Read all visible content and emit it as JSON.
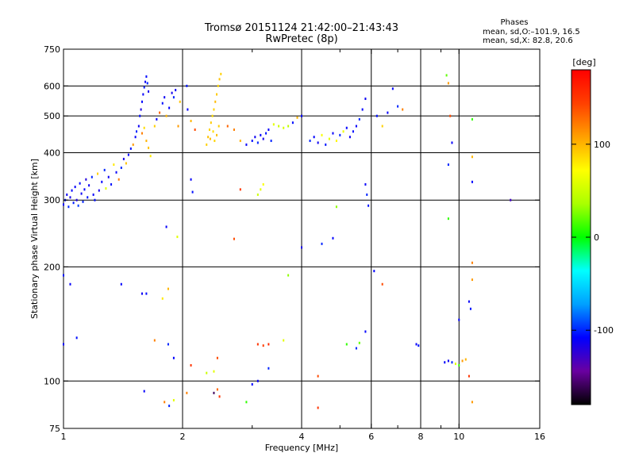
{
  "header": {
    "title_line1": "Tromsø 20151124 21:42:00–21:43:43",
    "title_line2": "RwPretec (8p)"
  },
  "stats_box": {
    "heading": "Phases",
    "line1": "mean, sd,O:–101.9, 16.5",
    "line2": "mean, sd,X:  82.8, 20.6"
  },
  "colorbar": {
    "unit_label": "[deg]",
    "ticks": [
      "100",
      "0",
      "-100"
    ],
    "tick_values": [
      100,
      0,
      -100
    ],
    "range": [
      -180,
      180
    ],
    "colors": [
      "#000000",
      "#6a00a0",
      "#0000ff",
      "#00a0ff",
      "#00ffff",
      "#00ff00",
      "#aaff00",
      "#ffff00",
      "#ffa000",
      "#ff4000",
      "#ff0000"
    ]
  },
  "chart_data": {
    "type": "scatter",
    "xlabel": "Frequency [MHz]",
    "ylabel": "Stationary phase Virtual Height [km]",
    "xscale": "log",
    "yscale": "log",
    "xlim": [
      1,
      16
    ],
    "ylim": [
      75,
      750
    ],
    "x_ticks": [
      1,
      2,
      4,
      6,
      8,
      10,
      16
    ],
    "x_tick_labels": [
      "1",
      "2",
      "4",
      "6",
      "8",
      "10",
      "16"
    ],
    "x_minor_ticks": [
      3,
      5,
      7,
      9
    ],
    "x_gridlines": [
      2,
      4,
      6,
      8,
      10
    ],
    "y_ticks": [
      75,
      100,
      200,
      300,
      400,
      500,
      600,
      750
    ],
    "y_tick_labels": [
      "75",
      "100",
      "200",
      "300",
      "400",
      "500",
      "600",
      "750"
    ],
    "y_gridlines": [
      100,
      200,
      300,
      400,
      500,
      600
    ],
    "grid": true,
    "color_variable": "phase [deg]",
    "points": [
      {
        "f": 1.0,
        "h": 292,
        "p": -110
      },
      {
        "f": 1.01,
        "h": 300,
        "p": -105
      },
      {
        "f": 1.02,
        "h": 310,
        "p": -112
      },
      {
        "f": 1.03,
        "h": 288,
        "p": -100
      },
      {
        "f": 1.04,
        "h": 305,
        "p": -115
      },
      {
        "f": 1.05,
        "h": 318,
        "p": -108
      },
      {
        "f": 1.06,
        "h": 295,
        "p": -102
      },
      {
        "f": 1.07,
        "h": 325,
        "p": -110
      },
      {
        "f": 1.08,
        "h": 300,
        "p": -118
      },
      {
        "f": 1.09,
        "h": 290,
        "p": -95
      },
      {
        "f": 1.1,
        "h": 332,
        "p": -105
      },
      {
        "f": 1.11,
        "h": 312,
        "p": -112
      },
      {
        "f": 1.12,
        "h": 297,
        "p": -100
      },
      {
        "f": 1.13,
        "h": 320,
        "p": -108
      },
      {
        "f": 1.14,
        "h": 340,
        "p": -120
      },
      {
        "f": 1.15,
        "h": 305,
        "p": -104
      },
      {
        "f": 1.16,
        "h": 328,
        "p": -112
      },
      {
        "f": 1.18,
        "h": 345,
        "p": -100
      },
      {
        "f": 1.19,
        "h": 310,
        "p": -110
      },
      {
        "f": 1.2,
        "h": 300,
        "p": -105
      },
      {
        "f": 1.22,
        "h": 352,
        "p": 90
      },
      {
        "f": 1.23,
        "h": 318,
        "p": -115
      },
      {
        "f": 1.25,
        "h": 335,
        "p": -108
      },
      {
        "f": 1.27,
        "h": 360,
        "p": -100
      },
      {
        "f": 1.28,
        "h": 322,
        "p": 60
      },
      {
        "f": 1.3,
        "h": 345,
        "p": -112
      },
      {
        "f": 1.32,
        "h": 330,
        "p": -105
      },
      {
        "f": 1.34,
        "h": 372,
        "p": 80
      },
      {
        "f": 1.36,
        "h": 355,
        "p": -110
      },
      {
        "f": 1.38,
        "h": 340,
        "p": 120
      },
      {
        "f": 1.4,
        "h": 365,
        "p": -100
      },
      {
        "f": 1.42,
        "h": 385,
        "p": -115
      },
      {
        "f": 1.44,
        "h": 375,
        "p": 95
      },
      {
        "f": 1.46,
        "h": 395,
        "p": -108
      },
      {
        "f": 1.48,
        "h": 410,
        "p": -105
      },
      {
        "f": 1.5,
        "h": 420,
        "p": 110
      },
      {
        "f": 1.52,
        "h": 440,
        "p": -110
      },
      {
        "f": 1.53,
        "h": 455,
        "p": -100
      },
      {
        "f": 1.55,
        "h": 470,
        "p": -112
      },
      {
        "f": 1.56,
        "h": 500,
        "p": -105
      },
      {
        "f": 1.57,
        "h": 520,
        "p": -118
      },
      {
        "f": 1.58,
        "h": 545,
        "p": -108
      },
      {
        "f": 1.59,
        "h": 570,
        "p": -110
      },
      {
        "f": 1.6,
        "h": 595,
        "p": -102
      },
      {
        "f": 1.61,
        "h": 615,
        "p": -112
      },
      {
        "f": 1.62,
        "h": 635,
        "p": -106
      },
      {
        "f": 1.63,
        "h": 610,
        "p": -100
      },
      {
        "f": 1.64,
        "h": 580,
        "p": -114
      },
      {
        "f": 1.62,
        "h": 430,
        "p": 100
      },
      {
        "f": 1.64,
        "h": 412,
        "p": 95
      },
      {
        "f": 1.66,
        "h": 392,
        "p": 80
      },
      {
        "f": 1.58,
        "h": 450,
        "p": 120
      },
      {
        "f": 1.6,
        "h": 465,
        "p": 85
      },
      {
        "f": 1.7,
        "h": 470,
        "p": 90
      },
      {
        "f": 1.72,
        "h": 490,
        "p": -110
      },
      {
        "f": 1.75,
        "h": 510,
        "p": 130
      },
      {
        "f": 1.78,
        "h": 540,
        "p": -105
      },
      {
        "f": 1.8,
        "h": 560,
        "p": -112
      },
      {
        "f": 1.82,
        "h": 500,
        "p": 100
      },
      {
        "f": 1.85,
        "h": 525,
        "p": -108
      },
      {
        "f": 1.88,
        "h": 575,
        "p": -115
      },
      {
        "f": 1.9,
        "h": 560,
        "p": -100
      },
      {
        "f": 1.92,
        "h": 585,
        "p": -112
      },
      {
        "f": 1.95,
        "h": 470,
        "p": 110
      },
      {
        "f": 1.97,
        "h": 545,
        "p": 95
      },
      {
        "f": 2.05,
        "h": 600,
        "p": -104
      },
      {
        "f": 2.06,
        "h": 520,
        "p": -110
      },
      {
        "f": 2.1,
        "h": 485,
        "p": 100
      },
      {
        "f": 2.15,
        "h": 460,
        "p": 140
      },
      {
        "f": 2.3,
        "h": 420,
        "p": 90
      },
      {
        "f": 2.32,
        "h": 440,
        "p": 95
      },
      {
        "f": 2.34,
        "h": 460,
        "p": 88
      },
      {
        "f": 2.36,
        "h": 480,
        "p": 92
      },
      {
        "f": 2.38,
        "h": 500,
        "p": 85
      },
      {
        "f": 2.4,
        "h": 520,
        "p": 90
      },
      {
        "f": 2.42,
        "h": 545,
        "p": 98
      },
      {
        "f": 2.44,
        "h": 570,
        "p": 92
      },
      {
        "f": 2.46,
        "h": 600,
        "p": 87
      },
      {
        "f": 2.48,
        "h": 625,
        "p": 95
      },
      {
        "f": 2.5,
        "h": 645,
        "p": 90
      },
      {
        "f": 2.41,
        "h": 430,
        "p": 88
      },
      {
        "f": 2.44,
        "h": 445,
        "p": 96
      },
      {
        "f": 2.47,
        "h": 470,
        "p": 91
      },
      {
        "f": 2.39,
        "h": 455,
        "p": 85
      },
      {
        "f": 2.35,
        "h": 435,
        "p": 99
      },
      {
        "f": 2.6,
        "h": 470,
        "p": 130
      },
      {
        "f": 2.7,
        "h": 460,
        "p": 120
      },
      {
        "f": 2.8,
        "h": 430,
        "p": 100
      },
      {
        "f": 2.9,
        "h": 420,
        "p": -110
      },
      {
        "f": 3.0,
        "h": 430,
        "p": -105
      },
      {
        "f": 3.05,
        "h": 440,
        "p": -112
      },
      {
        "f": 3.1,
        "h": 425,
        "p": -100
      },
      {
        "f": 3.15,
        "h": 445,
        "p": -108
      },
      {
        "f": 3.2,
        "h": 435,
        "p": -115
      },
      {
        "f": 3.25,
        "h": 450,
        "p": -104
      },
      {
        "f": 3.3,
        "h": 460,
        "p": -110
      },
      {
        "f": 3.35,
        "h": 430,
        "p": -100
      },
      {
        "f": 3.4,
        "h": 475,
        "p": 60
      },
      {
        "f": 3.5,
        "h": 470,
        "p": 50
      },
      {
        "f": 3.6,
        "h": 465,
        "p": 55
      },
      {
        "f": 3.7,
        "h": 470,
        "p": 45
      },
      {
        "f": 3.8,
        "h": 480,
        "p": -105
      },
      {
        "f": 3.9,
        "h": 495,
        "p": 100
      },
      {
        "f": 4.0,
        "h": 500,
        "p": -110
      },
      {
        "f": 4.2,
        "h": 430,
        "p": -100
      },
      {
        "f": 4.3,
        "h": 440,
        "p": -108
      },
      {
        "f": 4.4,
        "h": 425,
        "p": -112
      },
      {
        "f": 4.5,
        "h": 445,
        "p": 70
      },
      {
        "f": 4.6,
        "h": 420,
        "p": -104
      },
      {
        "f": 4.7,
        "h": 435,
        "p": 60
      },
      {
        "f": 4.8,
        "h": 450,
        "p": -110
      },
      {
        "f": 4.9,
        "h": 430,
        "p": 75
      },
      {
        "f": 5.0,
        "h": 445,
        "p": -100
      },
      {
        "f": 5.1,
        "h": 455,
        "p": 65
      },
      {
        "f": 5.2,
        "h": 465,
        "p": -108
      },
      {
        "f": 5.3,
        "h": 440,
        "p": -112
      },
      {
        "f": 5.4,
        "h": 455,
        "p": -105
      },
      {
        "f": 5.5,
        "h": 470,
        "p": -110
      },
      {
        "f": 5.6,
        "h": 490,
        "p": -100
      },
      {
        "f": 5.7,
        "h": 520,
        "p": -108
      },
      {
        "f": 5.8,
        "h": 555,
        "p": -112
      },
      {
        "f": 6.2,
        "h": 500,
        "p": -105
      },
      {
        "f": 6.4,
        "h": 470,
        "p": 90
      },
      {
        "f": 6.6,
        "h": 510,
        "p": -110
      },
      {
        "f": 6.8,
        "h": 590,
        "p": -108
      },
      {
        "f": 7.0,
        "h": 530,
        "p": -100
      },
      {
        "f": 7.2,
        "h": 520,
        "p": 120
      },
      {
        "f": 9.3,
        "h": 640,
        "p": 20
      },
      {
        "f": 9.4,
        "h": 610,
        "p": 110
      },
      {
        "f": 9.6,
        "h": 425,
        "p": -110
      },
      {
        "f": 9.5,
        "h": 500,
        "p": 140
      },
      {
        "f": 9.4,
        "h": 372,
        "p": -100
      },
      {
        "f": 10.8,
        "h": 490,
        "p": 10
      },
      {
        "f": 10.8,
        "h": 390,
        "p": 100
      },
      {
        "f": 10.8,
        "h": 335,
        "p": -108
      },
      {
        "f": 13.5,
        "h": 300,
        "p": -130
      },
      {
        "f": 9.4,
        "h": 268,
        "p": 10
      },
      {
        "f": 1.94,
        "h": 240,
        "p": 60
      },
      {
        "f": 1.82,
        "h": 255,
        "p": -110
      },
      {
        "f": 2.7,
        "h": 237,
        "p": 140
      },
      {
        "f": 4.0,
        "h": 225,
        "p": -115
      },
      {
        "f": 4.5,
        "h": 230,
        "p": -100
      },
      {
        "f": 4.8,
        "h": 238,
        "p": -108
      },
      {
        "f": 4.9,
        "h": 288,
        "p": 30
      },
      {
        "f": 5.9,
        "h": 290,
        "p": -104
      },
      {
        "f": 3.1,
        "h": 310,
        "p": 50
      },
      {
        "f": 3.15,
        "h": 320,
        "p": 60
      },
      {
        "f": 3.2,
        "h": 330,
        "p": 70
      },
      {
        "f": 2.1,
        "h": 340,
        "p": -110
      },
      {
        "f": 2.12,
        "h": 315,
        "p": -105
      },
      {
        "f": 2.8,
        "h": 320,
        "p": 150
      },
      {
        "f": 5.8,
        "h": 330,
        "p": -110
      },
      {
        "f": 5.85,
        "h": 310,
        "p": -100
      },
      {
        "f": 1.0,
        "h": 190,
        "p": -105
      },
      {
        "f": 1.04,
        "h": 180,
        "p": -110
      },
      {
        "f": 1.4,
        "h": 180,
        "p": -108
      },
      {
        "f": 1.58,
        "h": 170,
        "p": -112
      },
      {
        "f": 1.62,
        "h": 170,
        "p": -106
      },
      {
        "f": 1.78,
        "h": 165,
        "p": 80
      },
      {
        "f": 1.84,
        "h": 175,
        "p": 100
      },
      {
        "f": 3.7,
        "h": 190,
        "p": 30
      },
      {
        "f": 6.1,
        "h": 195,
        "p": -108
      },
      {
        "f": 6.4,
        "h": 180,
        "p": 140
      },
      {
        "f": 10.8,
        "h": 205,
        "p": 120
      },
      {
        "f": 10.8,
        "h": 185,
        "p": 110
      },
      {
        "f": 10.6,
        "h": 162,
        "p": -110
      },
      {
        "f": 10.7,
        "h": 155,
        "p": -104
      },
      {
        "f": 10.0,
        "h": 145,
        "p": -108
      },
      {
        "f": 1.0,
        "h": 125,
        "p": -110
      },
      {
        "f": 1.08,
        "h": 130,
        "p": -105
      },
      {
        "f": 1.7,
        "h": 128,
        "p": 120
      },
      {
        "f": 1.84,
        "h": 125,
        "p": -100
      },
      {
        "f": 1.9,
        "h": 115,
        "p": -108
      },
      {
        "f": 2.1,
        "h": 110,
        "p": 150
      },
      {
        "f": 2.3,
        "h": 105,
        "p": 50
      },
      {
        "f": 2.4,
        "h": 106,
        "p": 60
      },
      {
        "f": 2.45,
        "h": 115,
        "p": 140
      },
      {
        "f": 3.1,
        "h": 125,
        "p": 150
      },
      {
        "f": 3.2,
        "h": 124,
        "p": 145
      },
      {
        "f": 3.3,
        "h": 125,
        "p": 155
      },
      {
        "f": 3.3,
        "h": 108,
        "p": -100
      },
      {
        "f": 3.1,
        "h": 100,
        "p": -110
      },
      {
        "f": 3.6,
        "h": 128,
        "p": 60
      },
      {
        "f": 4.4,
        "h": 103,
        "p": 140
      },
      {
        "f": 5.2,
        "h": 125,
        "p": 10
      },
      {
        "f": 5.5,
        "h": 122,
        "p": -100
      },
      {
        "f": 5.6,
        "h": 126,
        "p": 20
      },
      {
        "f": 5.8,
        "h": 135,
        "p": -108
      },
      {
        "f": 7.8,
        "h": 125,
        "p": -110
      },
      {
        "f": 7.9,
        "h": 124,
        "p": -104
      },
      {
        "f": 9.2,
        "h": 112,
        "p": -108
      },
      {
        "f": 9.4,
        "h": 113,
        "p": -112
      },
      {
        "f": 9.6,
        "h": 112,
        "p": -100
      },
      {
        "f": 9.8,
        "h": 111,
        "p": 60
      },
      {
        "f": 10.0,
        "h": 110,
        "p": 10
      },
      {
        "f": 10.2,
        "h": 113,
        "p": 110
      },
      {
        "f": 10.4,
        "h": 114,
        "p": 100
      },
      {
        "f": 10.6,
        "h": 103,
        "p": 150
      },
      {
        "f": 1.6,
        "h": 94,
        "p": -110
      },
      {
        "f": 1.8,
        "h": 88,
        "p": 120
      },
      {
        "f": 1.85,
        "h": 86,
        "p": -100
      },
      {
        "f": 1.9,
        "h": 89,
        "p": 60
      },
      {
        "f": 2.05,
        "h": 93,
        "p": 120
      },
      {
        "f": 2.4,
        "h": 93,
        "p": -160
      },
      {
        "f": 2.45,
        "h": 95,
        "p": 130
      },
      {
        "f": 2.48,
        "h": 91,
        "p": 150
      },
      {
        "f": 2.9,
        "h": 88,
        "p": 10
      },
      {
        "f": 3.0,
        "h": 98,
        "p": -108
      },
      {
        "f": 4.4,
        "h": 85,
        "p": 150
      },
      {
        "f": 10.8,
        "h": 88,
        "p": 110
      }
    ]
  }
}
